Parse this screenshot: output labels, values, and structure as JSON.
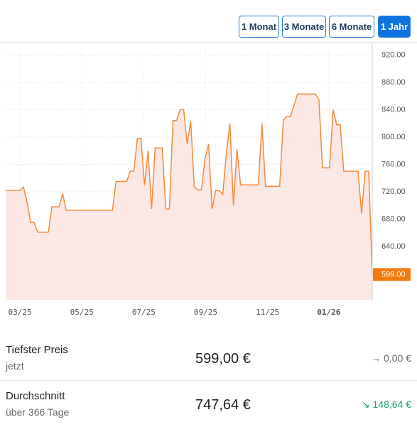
{
  "range_buttons": {
    "options": [
      "1 Monat",
      "3 Monate",
      "6 Monate",
      "1 Jahr"
    ],
    "active_index": 3
  },
  "chart_data": {
    "type": "line",
    "values": [
      722,
      722,
      722,
      722,
      722,
      727,
      705,
      675,
      675,
      661,
      661,
      661,
      661,
      698,
      698,
      698,
      717,
      693,
      693,
      693,
      693,
      693,
      693,
      693,
      693,
      693,
      693,
      693,
      693,
      693,
      693,
      735,
      735,
      735,
      735,
      750,
      750,
      798,
      798,
      730,
      780,
      695,
      784,
      784,
      784,
      695,
      695,
      824,
      824,
      840,
      840,
      790,
      823,
      727,
      723,
      723,
      768,
      790,
      695,
      722,
      722,
      716,
      776,
      820,
      700,
      782,
      730,
      730,
      730,
      730,
      730,
      730,
      820,
      728,
      728,
      728,
      728,
      728,
      825,
      830,
      830,
      846,
      863,
      863,
      863,
      863,
      863,
      863,
      855,
      755,
      755,
      755,
      840,
      818,
      818,
      750,
      750,
      750,
      750,
      750,
      688,
      750,
      750,
      599
    ],
    "color": "#f58a3a",
    "fill": "#fbe8e4",
    "xlim": [
      0,
      103
    ],
    "ylim": [
      562,
      936
    ],
    "xticks": [
      {
        "value": 4,
        "label": "03/25"
      },
      {
        "value": 21.4,
        "label": "05/25"
      },
      {
        "value": 38.8,
        "label": "07/25"
      },
      {
        "value": 56.2,
        "label": "09/25"
      },
      {
        "value": 73.6,
        "label": "11/25"
      },
      {
        "value": 90.8,
        "label": "01/26",
        "bold": true
      }
    ],
    "yticks": [
      {
        "value": 640,
        "label": "640.00"
      },
      {
        "value": 680,
        "label": "680.00"
      },
      {
        "value": 720,
        "label": "720.00"
      },
      {
        "value": 760,
        "label": "760.00"
      },
      {
        "value": 800,
        "label": "800.00"
      },
      {
        "value": 840,
        "label": "840.00"
      },
      {
        "value": 880,
        "label": "880.00"
      },
      {
        "value": 920,
        "label": "920.00"
      }
    ],
    "marker": {
      "value": 599,
      "label": "599.00",
      "color": "#f27a0f"
    },
    "grid": true
  },
  "stats": [
    {
      "label": "Tiefster Preis",
      "sublabel": "jetzt",
      "value": "599,00 €",
      "change": "→ 0,00 €",
      "change_color": "#666666"
    },
    {
      "label": "Durchschnitt",
      "sublabel": "über 366 Tage",
      "value": "747,64 €",
      "change": "↘ 148,64 €",
      "change_color": "#1aa260"
    }
  ]
}
